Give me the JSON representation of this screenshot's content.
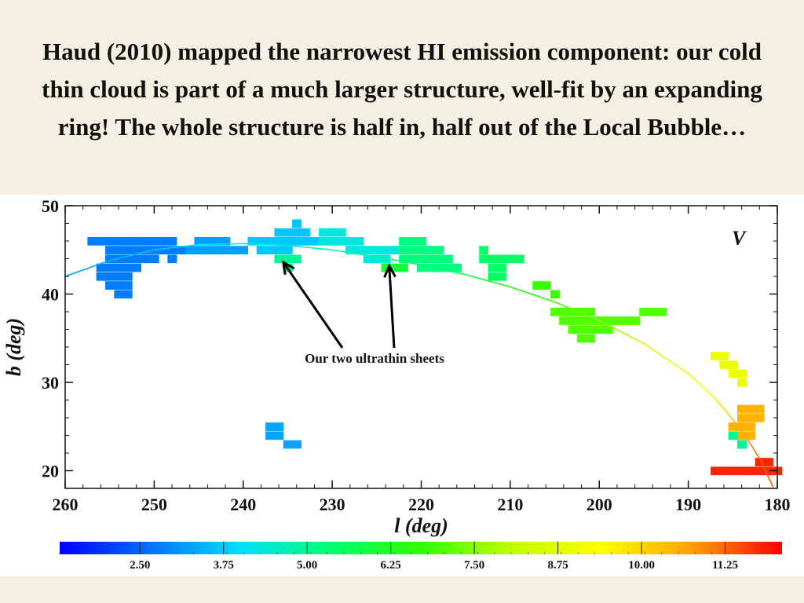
{
  "slide": {
    "title": "Haud (2010) mapped the narrowest HI emission component: our cold thin cloud is part of a much larger structure, well-fit by an expanding ring! The whole structure is half in, half out of the Local Bubble…"
  },
  "chart_data": {
    "type": "scatter",
    "panel_label": "V",
    "xlabel": "l (deg)",
    "ylabel": "b (deg)",
    "xlim": [
      260,
      180
    ],
    "ylim": [
      18,
      50
    ],
    "xticks": [
      260,
      250,
      240,
      230,
      220,
      210,
      200,
      190,
      180
    ],
    "yticks": [
      20,
      30,
      40,
      50
    ],
    "annotation": "Our two ultrathin sheets",
    "annotation_targets": [
      {
        "l": 235.5,
        "b": 43.6
      },
      {
        "l": 223.6,
        "b": 43.2
      }
    ],
    "colorbar": {
      "ticks": [
        2.5,
        3.75,
        5.0,
        6.25,
        7.5,
        8.75,
        10.0,
        11.25
      ],
      "tick_labels": [
        "2.50",
        "3.75",
        "5.00",
        "6.25",
        "7.50",
        "8.75",
        "10.00",
        "11.25"
      ],
      "range": [
        1.3,
        12.1
      ],
      "colors": [
        "#0000ff",
        "#0070ff",
        "#00e0ff",
        "#00ff70",
        "#30ff00",
        "#c0ff00",
        "#ffff00",
        "#ffa000",
        "#ff0000"
      ]
    },
    "ring_fit": [
      [
        260,
        42.0
      ],
      [
        255,
        43.8
      ],
      [
        250,
        45.0
      ],
      [
        245,
        45.6
      ],
      [
        240,
        45.7
      ],
      [
        235,
        45.5
      ],
      [
        230,
        45.0
      ],
      [
        225,
        44.2
      ],
      [
        220,
        43.3
      ],
      [
        215,
        42.2
      ],
      [
        210,
        40.8
      ],
      [
        205,
        39.1
      ],
      [
        200,
        37.0
      ],
      [
        195,
        34.4
      ],
      [
        190,
        31.0
      ],
      [
        187,
        28.2
      ],
      [
        184,
        24.6
      ],
      [
        182,
        21.4
      ],
      [
        180.5,
        18.2
      ]
    ],
    "ring_velocity": [
      [
        260,
        3.2
      ],
      [
        230,
        4.8
      ],
      [
        215,
        5.8
      ],
      [
        205,
        6.8
      ],
      [
        195,
        8.3
      ],
      [
        187,
        9.6
      ],
      [
        182,
        11.3
      ]
    ],
    "emission_patches": [
      {
        "name": "west-clump",
        "v": 2.8,
        "cells": [
          [
            257,
            46
          ],
          [
            256,
            46
          ],
          [
            255,
            46
          ],
          [
            254,
            46
          ],
          [
            253,
            46
          ],
          [
            252,
            46
          ],
          [
            251,
            46
          ],
          [
            250,
            46
          ],
          [
            249,
            46
          ],
          [
            248,
            46
          ],
          [
            255,
            45
          ],
          [
            254,
            45
          ],
          [
            253,
            45
          ],
          [
            252,
            45
          ],
          [
            251,
            45
          ],
          [
            250,
            45
          ],
          [
            249,
            45
          ],
          [
            248,
            45
          ],
          [
            247,
            45
          ],
          [
            255,
            44
          ],
          [
            254,
            44
          ],
          [
            253,
            44
          ],
          [
            252,
            44
          ],
          [
            251,
            44
          ],
          [
            250,
            44
          ],
          [
            248,
            44
          ],
          [
            256,
            43
          ],
          [
            255,
            43
          ],
          [
            254,
            43
          ],
          [
            253,
            43
          ],
          [
            252,
            43
          ],
          [
            256,
            42
          ],
          [
            255,
            42
          ],
          [
            254,
            42
          ],
          [
            253,
            42
          ],
          [
            255,
            41
          ],
          [
            254,
            41
          ],
          [
            253,
            41
          ],
          [
            254,
            40
          ],
          [
            253,
            40
          ]
        ]
      },
      {
        "name": "arc-west",
        "v": 3.2,
        "cells": [
          [
            246,
            45
          ],
          [
            245,
            45
          ],
          [
            244,
            45
          ],
          [
            243,
            45
          ],
          [
            242,
            45
          ],
          [
            241,
            45
          ],
          [
            240,
            45
          ],
          [
            245,
            46
          ],
          [
            244,
            46
          ],
          [
            243,
            46
          ],
          [
            242,
            46
          ]
        ]
      },
      {
        "name": "arc-top-west",
        "v": 3.7,
        "cells": [
          [
            239,
            46
          ],
          [
            238,
            46
          ],
          [
            237,
            46
          ],
          [
            236,
            46
          ],
          [
            235,
            46
          ],
          [
            234,
            46
          ],
          [
            233,
            46
          ],
          [
            232,
            46
          ],
          [
            236,
            47
          ],
          [
            235,
            47
          ],
          [
            234,
            47
          ],
          [
            233,
            47
          ],
          [
            234,
            48
          ],
          [
            238,
            45
          ],
          [
            237,
            45
          ],
          [
            236,
            45
          ],
          [
            235,
            45
          ]
        ]
      },
      {
        "name": "arc-top-east",
        "v": 4.3,
        "cells": [
          [
            231,
            47
          ],
          [
            230,
            47
          ],
          [
            229,
            47
          ],
          [
            231,
            46
          ],
          [
            230,
            46
          ],
          [
            229,
            46
          ],
          [
            228,
            46
          ],
          [
            227,
            46
          ],
          [
            228,
            45
          ],
          [
            227,
            45
          ],
          [
            226,
            45
          ],
          [
            225,
            45
          ],
          [
            224,
            45
          ],
          [
            223,
            45
          ],
          [
            226,
            44
          ],
          [
            225,
            44
          ],
          [
            224,
            44
          ]
        ]
      },
      {
        "name": "sheet-west",
        "v": 5.0,
        "cells": [
          [
            236,
            44
          ],
          [
            235,
            44
          ],
          [
            234,
            44
          ],
          [
            235,
            43
          ]
        ]
      },
      {
        "name": "mid-clump",
        "v": 5.2,
        "cells": [
          [
            222,
            46
          ],
          [
            221,
            46
          ],
          [
            220,
            46
          ],
          [
            222,
            45
          ],
          [
            221,
            45
          ],
          [
            220,
            45
          ],
          [
            219,
            45
          ],
          [
            218,
            45
          ],
          [
            222,
            44
          ],
          [
            221,
            44
          ],
          [
            220,
            44
          ],
          [
            219,
            44
          ],
          [
            218,
            44
          ],
          [
            217,
            44
          ],
          [
            220,
            43
          ],
          [
            219,
            43
          ],
          [
            218,
            43
          ],
          [
            217,
            43
          ],
          [
            216,
            43
          ]
        ]
      },
      {
        "name": "sheet-east",
        "v": 6.0,
        "cells": [
          [
            224,
            43
          ],
          [
            223,
            43
          ],
          [
            222,
            43
          ]
        ]
      },
      {
        "name": "east-sliver",
        "v": 5.5,
        "cells": [
          [
            213,
            45
          ],
          [
            212,
            44
          ],
          [
            211,
            44
          ],
          [
            210,
            44
          ],
          [
            209,
            44
          ],
          [
            213,
            44
          ],
          [
            212,
            43
          ],
          [
            211,
            43
          ],
          [
            212,
            42
          ],
          [
            211,
            42
          ]
        ]
      },
      {
        "name": "isolated-1",
        "v": 6.8,
        "cells": [
          [
            207,
            41
          ],
          [
            206,
            41
          ],
          [
            205,
            40
          ]
        ]
      },
      {
        "name": "isolated-2",
        "v": 7.0,
        "cells": [
          [
            205,
            38
          ],
          [
            204,
            38
          ],
          [
            203,
            38
          ],
          [
            202,
            38
          ],
          [
            201,
            38
          ],
          [
            204,
            37
          ],
          [
            203,
            37
          ],
          [
            202,
            37
          ],
          [
            201,
            37
          ],
          [
            200,
            37
          ],
          [
            199,
            37
          ],
          [
            198,
            37
          ],
          [
            197,
            37
          ],
          [
            196,
            37
          ],
          [
            195,
            38
          ],
          [
            194,
            38
          ],
          [
            193,
            38
          ],
          [
            203,
            36
          ],
          [
            202,
            36
          ],
          [
            201,
            36
          ],
          [
            200,
            36
          ],
          [
            199,
            36
          ],
          [
            202,
            35
          ],
          [
            201,
            35
          ]
        ]
      },
      {
        "name": "isolated-3",
        "v": 9.0,
        "cells": [
          [
            187,
            33
          ],
          [
            186,
            33
          ],
          [
            186,
            32
          ],
          [
            185,
            32
          ],
          [
            185,
            31
          ],
          [
            184,
            31
          ],
          [
            184,
            30
          ]
        ]
      },
      {
        "name": "isolated-4",
        "v": 10.5,
        "cells": [
          [
            184,
            27
          ],
          [
            183,
            27
          ],
          [
            182,
            27
          ],
          [
            184,
            26
          ],
          [
            183,
            26
          ],
          [
            182,
            26
          ],
          [
            185,
            25
          ],
          [
            184,
            25
          ],
          [
            183,
            25
          ],
          [
            184,
            24
          ],
          [
            183,
            24
          ],
          [
            184,
            23
          ]
        ]
      },
      {
        "name": "isolated-5",
        "v": 5.0,
        "cells": [
          [
            185,
            24
          ],
          [
            184,
            23
          ]
        ]
      },
      {
        "name": "isolated-6",
        "v": 11.8,
        "cells": [
          [
            187,
            20
          ],
          [
            186,
            20
          ],
          [
            185,
            20
          ],
          [
            184,
            20
          ],
          [
            182,
            21
          ],
          [
            181,
            21
          ],
          [
            183,
            20
          ],
          [
            182,
            20
          ],
          [
            181,
            20
          ],
          [
            180,
            20
          ]
        ]
      },
      {
        "name": "isolated-7",
        "v": 3.3,
        "cells": [
          [
            237,
            25
          ],
          [
            236,
            25
          ],
          [
            237,
            24
          ],
          [
            236,
            24
          ],
          [
            235,
            23
          ],
          [
            234,
            23
          ]
        ]
      }
    ]
  }
}
